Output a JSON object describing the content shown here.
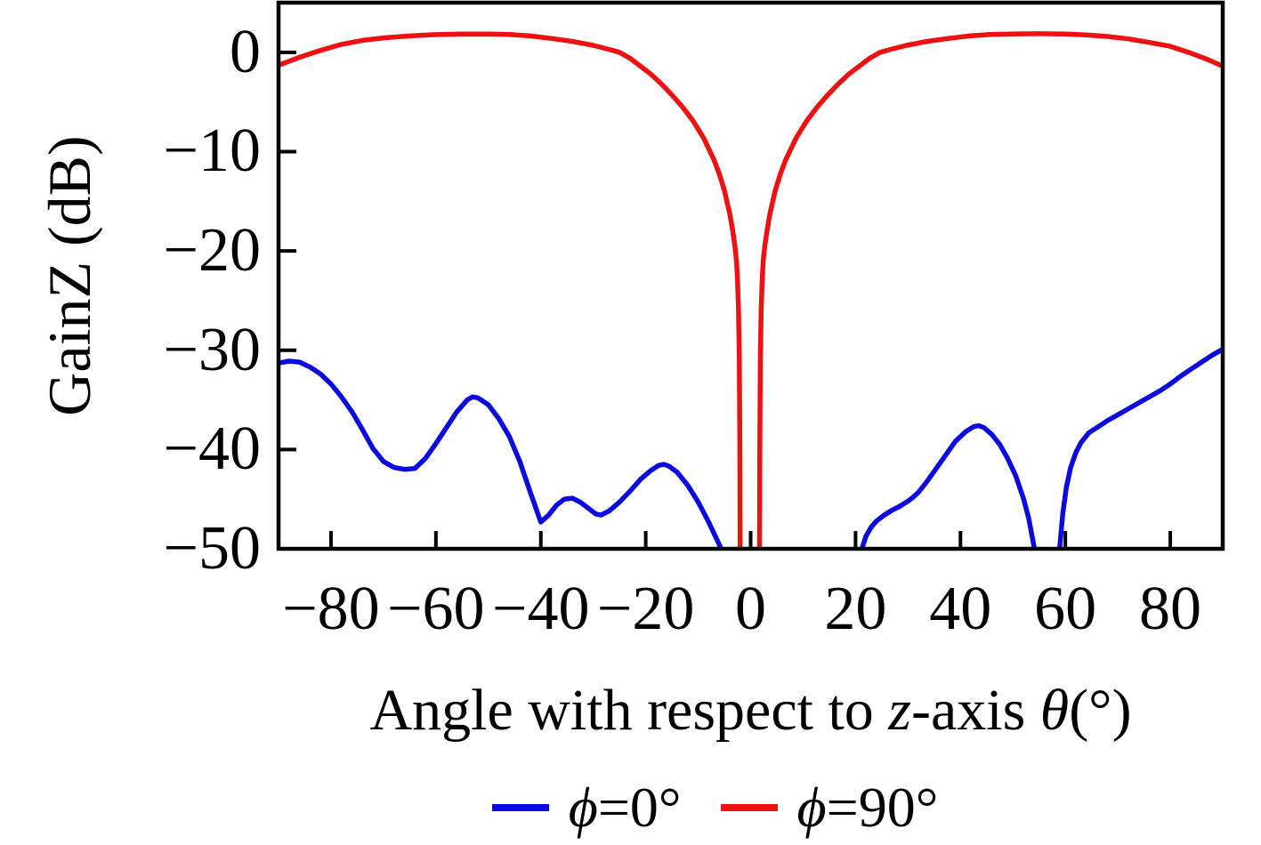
{
  "figure": {
    "background": "#ffffff",
    "xlabel_parts": [
      {
        "text": "Angle with respect to ",
        "italic": false
      },
      {
        "text": "z",
        "italic": true
      },
      {
        "text": "-axis ",
        "italic": false
      },
      {
        "text": "θ",
        "italic": true
      },
      {
        "text": "(°)",
        "italic": false
      }
    ]
  },
  "legend": {
    "items": [
      {
        "id": "phi-0",
        "symbol": "ϕ",
        "label_rest": "=0°",
        "color": "#0b0bdf"
      },
      {
        "id": "phi-90",
        "symbol": "ϕ",
        "label_rest": "=90°",
        "color": "#ee1111"
      }
    ]
  },
  "chart_data": {
    "type": "line",
    "title": "",
    "xlabel": "Angle with respect to z-axis θ(°)",
    "ylabel": "GainZ (dB)",
    "xlim": [
      -90,
      90
    ],
    "ylim": [
      -50,
      5
    ],
    "grid": false,
    "legend_position": "below",
    "x_ticks": [
      -80,
      -60,
      -40,
      -20,
      0,
      20,
      40,
      60,
      80
    ],
    "x_tick_labels": [
      "−80",
      "−60",
      "−40",
      "−20",
      "0",
      "20",
      "40",
      "60",
      "80"
    ],
    "y_ticks": [
      0,
      -10,
      -20,
      -30,
      -40,
      -50
    ],
    "y_tick_labels": [
      "0",
      "−10",
      "−20",
      "−30",
      "−40",
      "−50"
    ],
    "axis_color": "#000000",
    "series": [
      {
        "id": "phi-0",
        "name": "ϕ=0°",
        "color": "#0b0bdf",
        "segments": [
          [
            [
              -90,
              -31.3
            ],
            [
              -88,
              -31.1
            ],
            [
              -86,
              -31.2
            ],
            [
              -84,
              -31.7
            ],
            [
              -82,
              -32.4
            ],
            [
              -80,
              -33.4
            ],
            [
              -78,
              -34.7
            ],
            [
              -76,
              -36.2
            ],
            [
              -74,
              -38.0
            ],
            [
              -72,
              -39.9
            ],
            [
              -70,
              -41.2
            ],
            [
              -68,
              -41.8
            ],
            [
              -66,
              -42.0
            ],
            [
              -64,
              -41.9
            ],
            [
              -62,
              -40.9
            ],
            [
              -60,
              -39.4
            ],
            [
              -58,
              -37.8
            ],
            [
              -56,
              -36.2
            ],
            [
              -54,
              -35.0
            ],
            [
              -53,
              -34.7
            ],
            [
              -52,
              -34.8
            ],
            [
              -50,
              -35.5
            ],
            [
              -48,
              -36.9
            ],
            [
              -46,
              -38.7
            ],
            [
              -44,
              -41.2
            ],
            [
              -42,
              -44.3
            ],
            [
              -40,
              -47.3
            ],
            [
              -38.5,
              -46.6
            ],
            [
              -37,
              -45.6
            ],
            [
              -35.5,
              -45.0
            ],
            [
              -34,
              -44.9
            ],
            [
              -32.5,
              -45.3
            ],
            [
              -31,
              -45.9
            ],
            [
              -29.5,
              -46.5
            ],
            [
              -28.5,
              -46.6
            ],
            [
              -27,
              -46.2
            ],
            [
              -25,
              -45.3
            ],
            [
              -23,
              -44.2
            ],
            [
              -21,
              -43.0
            ],
            [
              -19,
              -42.1
            ],
            [
              -17.5,
              -41.6
            ],
            [
              -16.5,
              -41.5
            ],
            [
              -15.5,
              -41.7
            ],
            [
              -14,
              -42.3
            ],
            [
              -12,
              -43.6
            ],
            [
              -10,
              -45.3
            ],
            [
              -8,
              -47.3
            ],
            [
              -6.5,
              -49.0
            ],
            [
              -5.6,
              -50
            ]
          ],
          [
            [
              21.2,
              -50
            ],
            [
              22,
              -48.7
            ],
            [
              23,
              -47.8
            ],
            [
              24,
              -47.2
            ],
            [
              25.5,
              -46.6
            ],
            [
              27,
              -46.1
            ],
            [
              28.5,
              -45.7
            ],
            [
              30,
              -45.2
            ],
            [
              31,
              -44.8
            ],
            [
              32,
              -44.3
            ],
            [
              33.5,
              -43.3
            ],
            [
              35,
              -42.2
            ],
            [
              37,
              -40.7
            ],
            [
              39,
              -39.2
            ],
            [
              41,
              -38.2
            ],
            [
              42.5,
              -37.7
            ],
            [
              43.5,
              -37.6
            ],
            [
              44.5,
              -37.8
            ],
            [
              46,
              -38.5
            ],
            [
              47.5,
              -39.5
            ],
            [
              49,
              -40.9
            ],
            [
              50.5,
              -42.6
            ],
            [
              52,
              -44.9
            ],
            [
              53,
              -46.9
            ],
            [
              54.1,
              -50
            ]
          ],
          [
            [
              58.9,
              -50
            ],
            [
              59.5,
              -46.5
            ],
            [
              60.2,
              -43.8
            ],
            [
              61,
              -41.8
            ],
            [
              62,
              -40.3
            ],
            [
              63,
              -39.3
            ],
            [
              64.5,
              -38.3
            ],
            [
              66,
              -37.8
            ],
            [
              68,
              -37.1
            ],
            [
              70,
              -36.5
            ],
            [
              72,
              -35.9
            ],
            [
              74,
              -35.3
            ],
            [
              76,
              -34.7
            ],
            [
              78,
              -34.1
            ],
            [
              80,
              -33.4
            ],
            [
              82,
              -32.6
            ],
            [
              84,
              -31.9
            ],
            [
              86,
              -31.2
            ],
            [
              88,
              -30.5
            ],
            [
              90,
              -29.9
            ]
          ]
        ]
      },
      {
        "id": "phi-90",
        "name": "ϕ=90°",
        "color": "#ee1111",
        "segments": [
          [
            [
              -90,
              -1.3
            ],
            [
              -86,
              -0.5
            ],
            [
              -82,
              0.2
            ],
            [
              -78,
              0.8
            ],
            [
              -74,
              1.2
            ],
            [
              -70,
              1.45
            ],
            [
              -65,
              1.65
            ],
            [
              -60,
              1.78
            ],
            [
              -55,
              1.85
            ],
            [
              -50,
              1.85
            ],
            [
              -46,
              1.8
            ],
            [
              -42,
              1.65
            ],
            [
              -38,
              1.4
            ],
            [
              -34,
              1.1
            ],
            [
              -30,
              0.7
            ],
            [
              -27,
              0.3
            ],
            [
              -25,
              0.0
            ],
            [
              -23,
              -0.6
            ],
            [
              -21,
              -1.4
            ],
            [
              -19,
              -2.2
            ],
            [
              -17,
              -3.2
            ],
            [
              -15,
              -4.3
            ],
            [
              -13,
              -5.5
            ],
            [
              -11,
              -6.9
            ],
            [
              -9,
              -8.6
            ],
            [
              -7,
              -10.8
            ],
            [
              -6,
              -12.2
            ],
            [
              -5,
              -13.9
            ],
            [
              -4,
              -16.2
            ],
            [
              -3.5,
              -17.7
            ],
            [
              -3,
              -19.5
            ],
            [
              -2.7,
              -21.0
            ],
            [
              -2.5,
              -23.0
            ],
            [
              -2.3,
              -26.0
            ],
            [
              -2.15,
              -31.0
            ],
            [
              -2.05,
              -40.0
            ],
            [
              -2.0,
              -50
            ]
          ],
          [
            [
              1.7,
              -50
            ],
            [
              1.75,
              -40.0
            ],
            [
              1.85,
              -31.0
            ],
            [
              2.0,
              -26.0
            ],
            [
              2.2,
              -23.0
            ],
            [
              2.4,
              -21.0
            ],
            [
              2.7,
              -19.5
            ],
            [
              3.2,
              -17.7
            ],
            [
              3.7,
              -16.2
            ],
            [
              4.7,
              -13.9
            ],
            [
              5.7,
              -12.2
            ],
            [
              6.7,
              -10.8
            ],
            [
              8.7,
              -8.6
            ],
            [
              10.7,
              -6.9
            ],
            [
              12.7,
              -5.5
            ],
            [
              14.7,
              -4.3
            ],
            [
              16.7,
              -3.2
            ],
            [
              18.7,
              -2.2
            ],
            [
              20.7,
              -1.4
            ],
            [
              22.7,
              -0.6
            ],
            [
              24.7,
              0.0
            ],
            [
              26.7,
              0.3
            ],
            [
              29.7,
              0.7
            ],
            [
              33.7,
              1.1
            ],
            [
              37.7,
              1.4
            ],
            [
              41.7,
              1.65
            ],
            [
              45.7,
              1.8
            ],
            [
              49.7,
              1.85
            ],
            [
              55,
              1.87
            ],
            [
              60,
              1.85
            ],
            [
              64,
              1.75
            ],
            [
              68,
              1.6
            ],
            [
              72,
              1.35
            ],
            [
              76,
              1.0
            ],
            [
              80,
              0.6
            ],
            [
              84,
              -0.1
            ],
            [
              87,
              -0.7
            ],
            [
              90,
              -1.4
            ]
          ]
        ]
      }
    ]
  }
}
